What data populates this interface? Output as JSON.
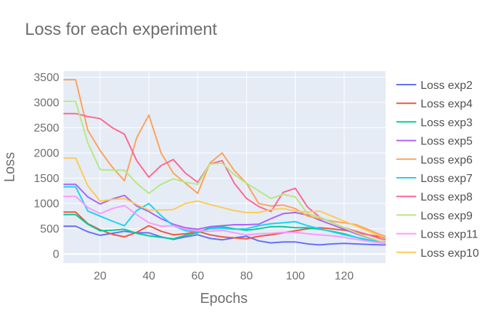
{
  "chart_data": {
    "type": "line",
    "title": "Loss for each experiment",
    "xlabel": "Epochs",
    "ylabel": "Loss",
    "xlim": [
      5,
      137
    ],
    "ylim": [
      -180,
      3620
    ],
    "x_ticks": [
      20,
      40,
      60,
      80,
      100,
      120
    ],
    "y_ticks": [
      0,
      500,
      1000,
      1500,
      2000,
      2500,
      3000,
      3500
    ],
    "grid": true,
    "plot_background": "#e5ecf6",
    "legend_position": "right",
    "x": [
      5,
      10,
      15,
      20,
      25,
      30,
      35,
      40,
      45,
      50,
      55,
      60,
      65,
      70,
      75,
      80,
      85,
      90,
      95,
      100,
      105,
      110,
      115,
      120,
      125,
      130,
      135,
      137
    ],
    "series": [
      {
        "name": "Loss exp2",
        "color": "#636efa",
        "values": [
          550,
          550,
          440,
          370,
          410,
          450,
          420,
          420,
          340,
          290,
          340,
          380,
          310,
          280,
          320,
          350,
          260,
          220,
          240,
          240,
          200,
          180,
          200,
          210,
          200,
          190,
          180,
          180
        ]
      },
      {
        "name": "Loss exp4",
        "color": "#ef553b",
        "values": [
          830,
          830,
          600,
          480,
          390,
          340,
          430,
          560,
          450,
          380,
          400,
          450,
          380,
          340,
          320,
          300,
          350,
          380,
          420,
          460,
          500,
          520,
          500,
          470,
          430,
          380,
          340,
          320
        ]
      },
      {
        "name": "Loss exp3",
        "color": "#00cc96",
        "values": [
          780,
          780,
          590,
          460,
          470,
          490,
          410,
          360,
          330,
          300,
          370,
          420,
          530,
          540,
          500,
          470,
          500,
          540,
          540,
          520,
          520,
          490,
          450,
          400,
          330,
          270,
          230,
          220
        ]
      },
      {
        "name": "Loss exp5",
        "color": "#ab63fa",
        "values": [
          1380,
          1380,
          1130,
          990,
          1090,
          1160,
          950,
          840,
          700,
          590,
          520,
          490,
          540,
          560,
          580,
          580,
          590,
          700,
          800,
          820,
          770,
          670,
          580,
          490,
          400,
          320,
          250,
          240
        ]
      },
      {
        "name": "Loss exp6",
        "color": "#ffa15a",
        "values": [
          3450,
          3450,
          2450,
          2050,
          1720,
          1450,
          2300,
          2750,
          2000,
          1600,
          1400,
          1200,
          1800,
          2000,
          1650,
          1400,
          1000,
          950,
          970,
          900,
          750,
          700,
          650,
          620,
          580,
          480,
          380,
          350
        ]
      },
      {
        "name": "Loss exp7",
        "color": "#19d3f3",
        "values": [
          1330,
          1330,
          850,
          750,
          650,
          560,
          860,
          1000,
          760,
          560,
          460,
          440,
          500,
          510,
          490,
          500,
          560,
          600,
          620,
          640,
          560,
          500,
          440,
          380,
          330,
          280,
          230,
          220
        ]
      },
      {
        "name": "Loss exp8",
        "color": "#ff6692",
        "values": [
          2780,
          2780,
          2720,
          2680,
          2500,
          2370,
          1850,
          1520,
          1750,
          1870,
          1600,
          1420,
          1780,
          1850,
          1400,
          1100,
          940,
          840,
          1220,
          1300,
          930,
          730,
          620,
          520,
          450,
          380,
          300,
          280
        ]
      },
      {
        "name": "Loss exp9",
        "color": "#b6e880",
        "values": [
          3020,
          3020,
          2200,
          1670,
          1660,
          1660,
          1400,
          1200,
          1380,
          1490,
          1420,
          1380,
          1780,
          1800,
          1570,
          1400,
          1250,
          1100,
          1180,
          1130,
          800,
          730,
          620,
          520,
          420,
          330,
          250,
          230
        ]
      },
      {
        "name": "Loss exp11",
        "color": "#ff97ff",
        "values": [
          1140,
          1140,
          920,
          800,
          900,
          960,
          780,
          620,
          550,
          560,
          490,
          460,
          450,
          470,
          420,
          380,
          400,
          410,
          430,
          430,
          400,
          380,
          360,
          330,
          290,
          250,
          220,
          210
        ]
      },
      {
        "name": "Loss exp10",
        "color": "#fecb52",
        "values": [
          1900,
          1900,
          1350,
          1050,
          1080,
          1100,
          980,
          870,
          870,
          880,
          1000,
          1050,
          980,
          920,
          860,
          820,
          820,
          880,
          900,
          850,
          830,
          850,
          750,
          650,
          550,
          450,
          350,
          330
        ]
      }
    ]
  }
}
